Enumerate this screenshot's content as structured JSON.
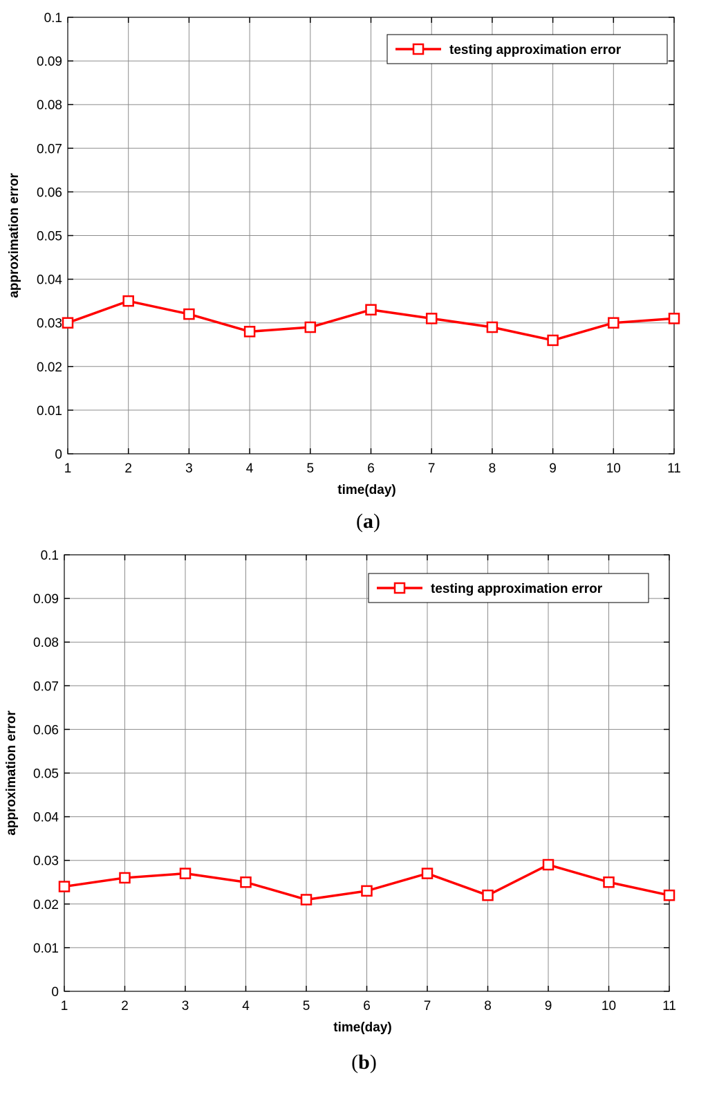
{
  "chart_data": [
    {
      "type": "line",
      "panel_label": "a",
      "xlabel": "time(day)",
      "ylabel": "approximation error",
      "xlim": [
        1,
        11
      ],
      "ylim": [
        0,
        0.1
      ],
      "xticks": [
        1,
        2,
        3,
        4,
        5,
        6,
        7,
        8,
        9,
        10,
        11
      ],
      "yticks": [
        0,
        0.01,
        0.02,
        0.03,
        0.04,
        0.05,
        0.06,
        0.07,
        0.08,
        0.09,
        0.1
      ],
      "ytick_labels": [
        "0",
        "0.01",
        "0.02",
        "0.03",
        "0.04",
        "0.05",
        "0.06",
        "0.07",
        "0.08",
        "0.09",
        "0.1"
      ],
      "grid": true,
      "legend_position": "top-right",
      "x": [
        1,
        2,
        3,
        4,
        5,
        6,
        7,
        8,
        9,
        10,
        11
      ],
      "series": [
        {
          "name": "testing approximation error",
          "color": "#ff0000",
          "marker": "square",
          "values": [
            0.03,
            0.035,
            0.032,
            0.028,
            0.029,
            0.033,
            0.031,
            0.029,
            0.026,
            0.03,
            0.031
          ]
        }
      ]
    },
    {
      "type": "line",
      "panel_label": "b",
      "xlabel": "time(day)",
      "ylabel": "approximation error",
      "xlim": [
        1,
        11
      ],
      "ylim": [
        0,
        0.1
      ],
      "xticks": [
        1,
        2,
        3,
        4,
        5,
        6,
        7,
        8,
        9,
        10,
        11
      ],
      "yticks": [
        0,
        0.01,
        0.02,
        0.03,
        0.04,
        0.05,
        0.06,
        0.07,
        0.08,
        0.09,
        0.1
      ],
      "ytick_labels": [
        "0",
        "0.01",
        "0.02",
        "0.03",
        "0.04",
        "0.05",
        "0.06",
        "0.07",
        "0.08",
        "0.09",
        "0.1"
      ],
      "grid": true,
      "legend_position": "top-right",
      "x": [
        1,
        2,
        3,
        4,
        5,
        6,
        7,
        8,
        9,
        10,
        11
      ],
      "series": [
        {
          "name": "testing approximation error",
          "color": "#ff0000",
          "marker": "square",
          "values": [
            0.024,
            0.026,
            0.027,
            0.025,
            0.021,
            0.023,
            0.027,
            0.022,
            0.029,
            0.025,
            0.022
          ]
        }
      ]
    }
  ]
}
